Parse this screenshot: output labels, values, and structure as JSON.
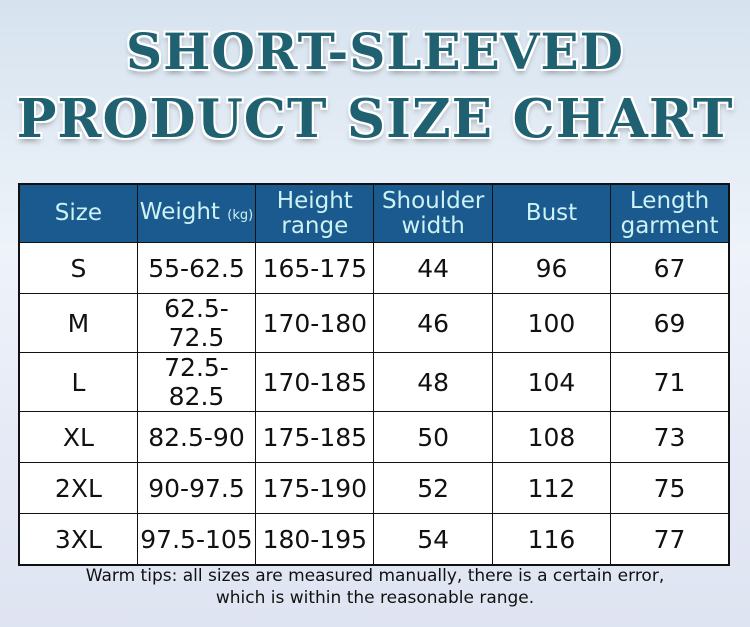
{
  "title_line1": "SHORT-SLEEVED",
  "title_line2": "PRODUCT SIZE CHART",
  "table": {
    "headers": [
      {
        "main": "Size",
        "unit": ""
      },
      {
        "main": "Weight",
        "unit": "(kg)"
      },
      {
        "main": "Height range",
        "unit": ""
      },
      {
        "main": "Shoulder width",
        "unit": ""
      },
      {
        "main": "Bust",
        "unit": ""
      },
      {
        "main": "Length garment",
        "unit": ""
      }
    ],
    "rows": [
      [
        "S",
        "55-62.5",
        "165-175",
        "44",
        "96",
        "67"
      ],
      [
        "M",
        "62.5-72.5",
        "170-180",
        "46",
        "100",
        "69"
      ],
      [
        "L",
        "72.5-82.5",
        "170-185",
        "48",
        "104",
        "71"
      ],
      [
        "XL",
        "82.5-90",
        "175-185",
        "50",
        "108",
        "73"
      ],
      [
        "2XL",
        "90-97.5",
        "175-190",
        "52",
        "112",
        "75"
      ],
      [
        "3XL",
        "97.5-105",
        "180-195",
        "54",
        "116",
        "77"
      ]
    ]
  },
  "tips_line1": "Warm tips: all sizes are measured manually, there is a certain error,",
  "tips_line2": "which is within the reasonable range.",
  "colors": {
    "header_bg": "#1b5a8f",
    "header_text": "#cdf2f4",
    "title": "#1f6170"
  }
}
